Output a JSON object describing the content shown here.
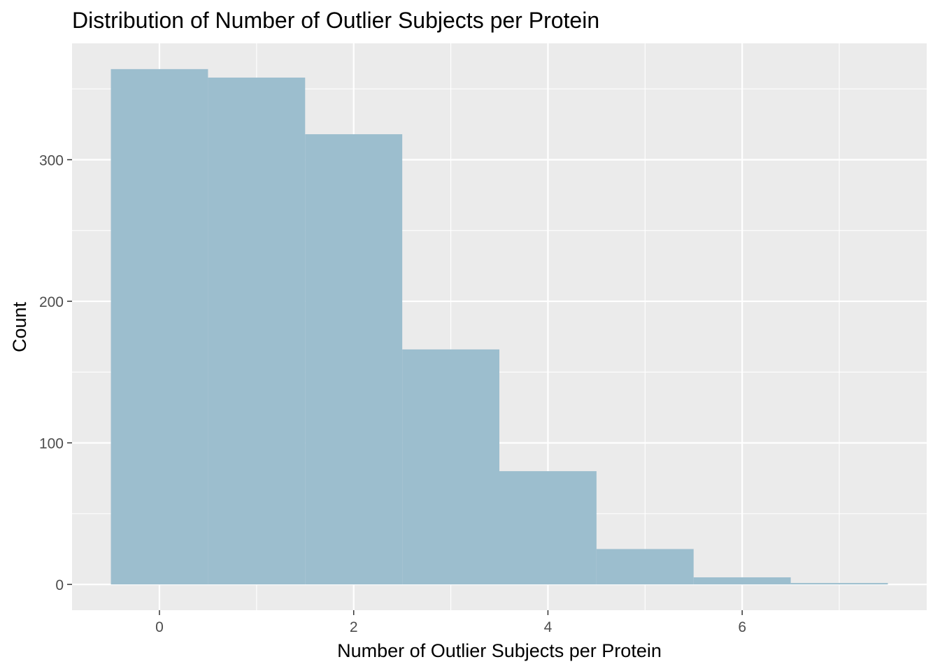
{
  "chart_data": {
    "type": "bar",
    "title": "Distribution of Number of Outlier Subjects per Protein",
    "xlabel": "Number of Outlier Subjects per Protein",
    "ylabel": "Count",
    "bin_width": 1,
    "x": [
      0,
      1,
      2,
      3,
      4,
      5,
      6,
      7
    ],
    "values": [
      364,
      358,
      318,
      166,
      80,
      25,
      5,
      1
    ],
    "xlim": [
      -0.9,
      7.9
    ],
    "ylim": [
      -18.2,
      382.2
    ],
    "x_ticks": [
      0,
      2,
      4,
      6
    ],
    "y_ticks": [
      0,
      100,
      200,
      300
    ],
    "x_tick_labels": [
      "0",
      "2",
      "4",
      "6"
    ],
    "y_tick_labels": [
      "0",
      "100",
      "200",
      "300"
    ],
    "grid": true,
    "colors": {
      "panel_background": "#EBEBEB",
      "grid": "#FFFFFF",
      "bar_fill": "#9CBECE",
      "tick_text": "#4D4D4D"
    }
  }
}
